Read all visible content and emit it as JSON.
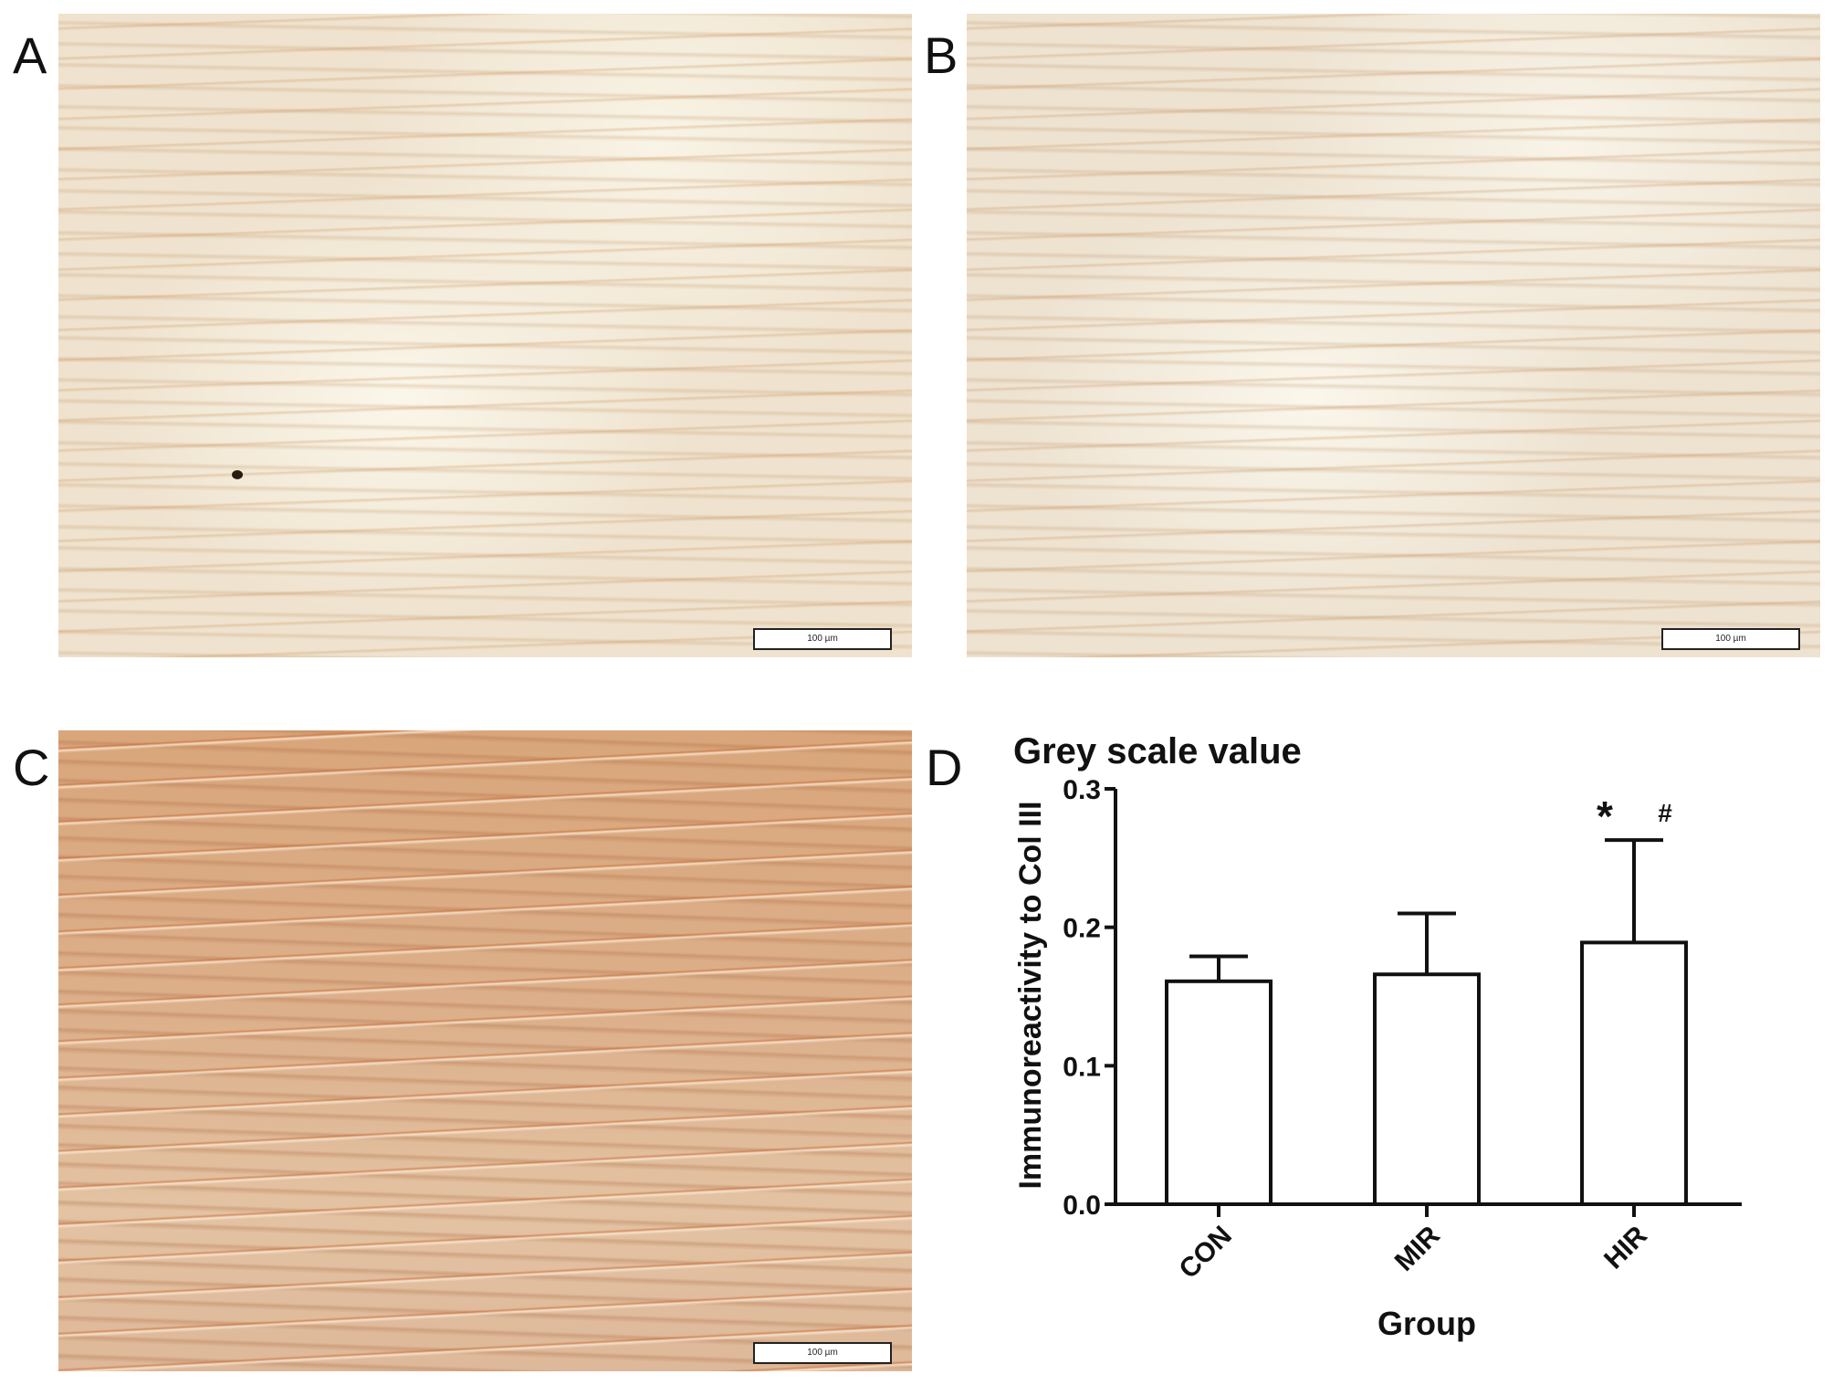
{
  "panels": [
    {
      "label": "A",
      "scale_bar": "100 µm"
    },
    {
      "label": "B",
      "scale_bar": "100 µm"
    },
    {
      "label": "C",
      "scale_bar": "100 µm"
    },
    {
      "label": "D"
    }
  ],
  "chart_data": {
    "type": "bar",
    "title": "Grey scale value",
    "xlabel": "Group",
    "ylabel": "Immunoreactivity to Col III",
    "categories": [
      "CON",
      "MIR",
      "HIR"
    ],
    "values": [
      0.161,
      0.166,
      0.189
    ],
    "error_upper": [
      0.179,
      0.21,
      0.263
    ],
    "annotations": {
      "HIR": [
        "*",
        "#"
      ]
    },
    "ylim": [
      0,
      0.3
    ],
    "yticks": [
      "0.0",
      "0.1",
      "0.2",
      "0.3"
    ],
    "grid": false,
    "bar_fill": "#ffffff",
    "bar_stroke": "#111111"
  }
}
